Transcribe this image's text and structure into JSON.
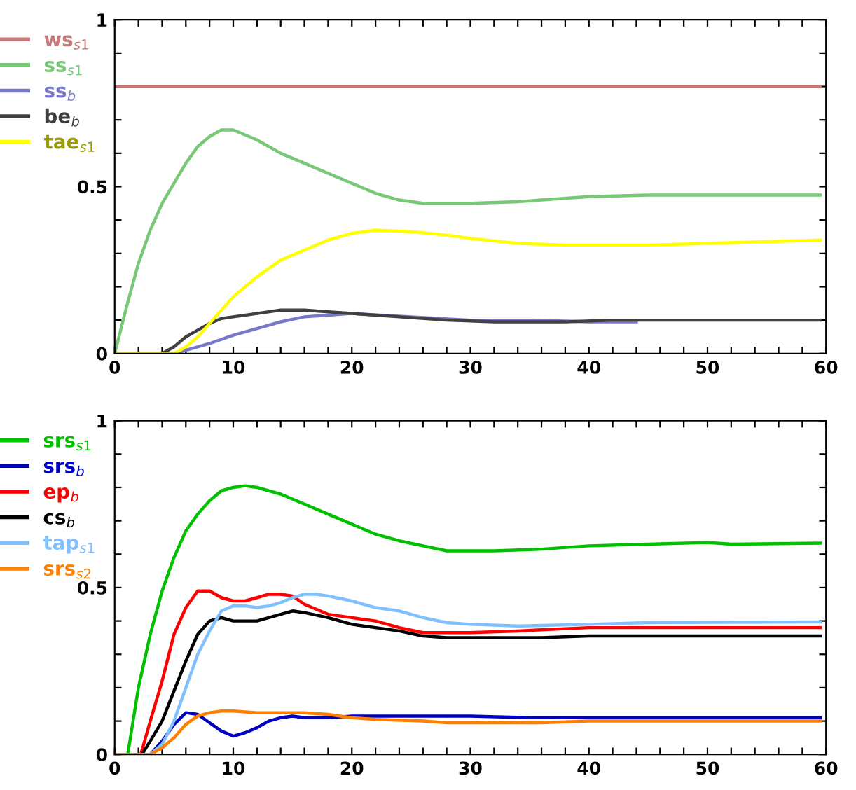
{
  "chart_data": [
    {
      "type": "line",
      "legend": "left",
      "grid": false,
      "xlim": [
        0,
        60
      ],
      "ylim": [
        0,
        1
      ],
      "xticks": [
        0,
        {
          "value": 2,
          "label": null
        },
        {
          "value": 4,
          "label": null
        },
        {
          "value": 6,
          "label": null
        },
        {
          "value": 8,
          "label": null
        },
        10,
        {
          "value": 12,
          "label": null
        },
        {
          "value": 14,
          "label": null
        },
        {
          "value": 16,
          "label": null
        },
        {
          "value": 18,
          "label": null
        },
        20,
        {
          "value": 22,
          "label": null
        },
        {
          "value": 24,
          "label": null
        },
        {
          "value": 26,
          "label": null
        },
        {
          "value": 28,
          "label": null
        },
        30,
        {
          "value": 32,
          "label": null
        },
        {
          "value": 34,
          "label": null
        },
        {
          "value": 36,
          "label": null
        },
        {
          "value": 38,
          "label": null
        },
        40,
        {
          "value": 42,
          "label": null
        },
        {
          "value": 44,
          "label": null
        },
        {
          "value": 46,
          "label": null
        },
        {
          "value": 48,
          "label": null
        },
        50,
        {
          "value": 52,
          "label": null
        },
        {
          "value": 54,
          "label": null
        },
        {
          "value": 56,
          "label": null
        },
        {
          "value": 58,
          "label": null
        },
        60
      ],
      "yticks": [
        0,
        {
          "value": 0.1,
          "label": null
        },
        {
          "value": 0.2,
          "label": null
        },
        {
          "value": 0.3,
          "label": null
        },
        {
          "value": 0.4,
          "label": null
        },
        0.5,
        {
          "value": 0.6,
          "label": null
        },
        {
          "value": 0.7,
          "label": null
        },
        {
          "value": 0.8,
          "label": null
        },
        {
          "value": 0.9,
          "label": null
        },
        1
      ],
      "series": [
        {
          "name": "ws$_{s1}$",
          "color": "#c87878",
          "x": [
            0,
            59.5
          ],
          "values": [
            0.8,
            0.8
          ]
        },
        {
          "name": "ss$_{s1}$",
          "color": "#78c878",
          "x": [
            0,
            1,
            2,
            3,
            4,
            5,
            6,
            7,
            8,
            9,
            10,
            12,
            14,
            16,
            18,
            20,
            22,
            24,
            26,
            30,
            34,
            40,
            45,
            59.5
          ],
          "values": [
            0,
            0.14,
            0.27,
            0.37,
            0.45,
            0.51,
            0.57,
            0.62,
            0.65,
            0.67,
            0.67,
            0.64,
            0.6,
            0.57,
            0.54,
            0.51,
            0.48,
            0.46,
            0.45,
            0.45,
            0.455,
            0.47,
            0.475,
            0.475
          ]
        },
        {
          "name": "ss$_{b}$",
          "color": "#7878c8",
          "x": [
            0,
            5,
            6,
            8,
            10,
            12,
            14,
            16,
            18,
            20,
            25,
            30,
            35,
            40,
            44
          ],
          "values": [
            0,
            0,
            0.01,
            0.03,
            0.055,
            0.075,
            0.095,
            0.11,
            0.115,
            0.12,
            0.11,
            0.1,
            0.1,
            0.095,
            0.095
          ]
        },
        {
          "name": "be$_{b}$",
          "color": "#404040",
          "x": [
            0,
            4,
            5,
            6,
            7,
            8,
            9,
            10,
            12,
            14,
            16,
            18,
            20,
            24,
            28,
            32,
            38,
            42,
            59.5
          ],
          "values": [
            0,
            0,
            0.02,
            0.05,
            0.07,
            0.09,
            0.105,
            0.11,
            0.12,
            0.13,
            0.13,
            0.125,
            0.12,
            0.11,
            0.1,
            0.095,
            0.095,
            0.1,
            0.1
          ]
        },
        {
          "name": "tae$_{s1}$",
          "color": "#ffff00",
          "x": [
            0,
            5,
            6,
            7,
            8,
            9,
            10,
            12,
            14,
            16,
            18,
            20,
            22,
            25,
            28,
            30,
            34,
            38,
            45,
            50,
            59.5
          ],
          "values": [
            0,
            0,
            0.02,
            0.05,
            0.09,
            0.13,
            0.17,
            0.23,
            0.28,
            0.31,
            0.34,
            0.36,
            0.37,
            0.365,
            0.355,
            0.345,
            0.33,
            0.325,
            0.325,
            0.33,
            0.34
          ]
        }
      ]
    },
    {
      "type": "line",
      "legend": "left",
      "grid": false,
      "xlim": [
        0,
        60
      ],
      "ylim": [
        0,
        1
      ],
      "xticks": [
        0,
        {
          "value": 2,
          "label": null
        },
        {
          "value": 4,
          "label": null
        },
        {
          "value": 6,
          "label": null
        },
        {
          "value": 8,
          "label": null
        },
        10,
        {
          "value": 12,
          "label": null
        },
        {
          "value": 14,
          "label": null
        },
        {
          "value": 16,
          "label": null
        },
        {
          "value": 18,
          "label": null
        },
        20,
        {
          "value": 22,
          "label": null
        },
        {
          "value": 24,
          "label": null
        },
        {
          "value": 26,
          "label": null
        },
        {
          "value": 28,
          "label": null
        },
        30,
        {
          "value": 32,
          "label": null
        },
        {
          "value": 34,
          "label": null
        },
        {
          "value": 36,
          "label": null
        },
        {
          "value": 38,
          "label": null
        },
        40,
        {
          "value": 42,
          "label": null
        },
        {
          "value": 44,
          "label": null
        },
        {
          "value": 46,
          "label": null
        },
        {
          "value": 48,
          "label": null
        },
        50,
        {
          "value": 52,
          "label": null
        },
        {
          "value": 54,
          "label": null
        },
        {
          "value": 56,
          "label": null
        },
        {
          "value": 58,
          "label": null
        },
        60
      ],
      "yticks": [
        0,
        {
          "value": 0.1,
          "label": null
        },
        {
          "value": 0.2,
          "label": null
        },
        {
          "value": 0.3,
          "label": null
        },
        {
          "value": 0.4,
          "label": null
        },
        0.5,
        {
          "value": 0.6,
          "label": null
        },
        {
          "value": 0.7,
          "label": null
        },
        {
          "value": 0.8,
          "label": null
        },
        {
          "value": 0.9,
          "label": null
        },
        1
      ],
      "series": [
        {
          "name": "srs$_{s1}$",
          "color": "#00c000",
          "x": [
            0,
            1.1,
            2,
            3,
            4,
            5,
            6,
            7,
            8,
            9,
            10,
            11,
            12,
            14,
            16,
            18,
            20,
            22,
            24,
            26,
            28,
            32,
            36,
            40,
            45,
            50,
            52,
            59.5
          ],
          "values": [
            0,
            0,
            0.2,
            0.36,
            0.49,
            0.59,
            0.67,
            0.72,
            0.76,
            0.79,
            0.8,
            0.805,
            0.8,
            0.78,
            0.75,
            0.72,
            0.69,
            0.66,
            0.64,
            0.625,
            0.61,
            0.61,
            0.615,
            0.625,
            0.63,
            0.635,
            0.63,
            0.633
          ]
        },
        {
          "name": "srs$_{b}$",
          "color": "#0000c0",
          "x": [
            0,
            3,
            4,
            5,
            6,
            7,
            8,
            9,
            10,
            11,
            12,
            13,
            14,
            15,
            16,
            18,
            20,
            25,
            30,
            35,
            59.5
          ],
          "values": [
            0,
            0,
            0.04,
            0.09,
            0.125,
            0.12,
            0.095,
            0.07,
            0.055,
            0.065,
            0.08,
            0.1,
            0.11,
            0.115,
            0.11,
            0.11,
            0.115,
            0.115,
            0.115,
            0.11,
            0.11
          ]
        },
        {
          "name": "ep$_{b}$",
          "color": "#ff0000",
          "x": [
            0,
            2.2,
            3,
            4,
            5,
            6,
            7,
            8,
            9,
            10,
            11,
            12,
            13,
            14,
            15,
            16,
            18,
            20,
            22,
            24,
            26,
            30,
            34,
            40,
            59.5
          ],
          "values": [
            0,
            0,
            0.1,
            0.22,
            0.36,
            0.44,
            0.49,
            0.49,
            0.47,
            0.46,
            0.46,
            0.47,
            0.48,
            0.48,
            0.475,
            0.45,
            0.42,
            0.41,
            0.4,
            0.38,
            0.365,
            0.365,
            0.37,
            0.38,
            0.38
          ]
        },
        {
          "name": "cs$_{b}$",
          "color": "#000000",
          "x": [
            0,
            2.3,
            3,
            4,
            5,
            6,
            7,
            8,
            9,
            10,
            11,
            12,
            13,
            14,
            15,
            16,
            18,
            20,
            22,
            24,
            26,
            28,
            30,
            36,
            40,
            59.5
          ],
          "values": [
            0,
            0,
            0.04,
            0.1,
            0.19,
            0.28,
            0.36,
            0.4,
            0.41,
            0.4,
            0.4,
            0.4,
            0.41,
            0.42,
            0.43,
            0.425,
            0.41,
            0.39,
            0.38,
            0.37,
            0.355,
            0.35,
            0.35,
            0.35,
            0.355,
            0.355
          ]
        },
        {
          "name": "tap$_{s1}$",
          "color": "#80c0ff",
          "x": [
            0,
            3,
            4,
            5,
            6,
            7,
            8,
            9,
            10,
            11,
            12,
            13,
            14,
            15,
            16,
            17,
            18,
            20,
            22,
            24,
            26,
            28,
            30,
            34,
            40,
            45,
            59.5
          ],
          "values": [
            0,
            0,
            0.03,
            0.1,
            0.2,
            0.3,
            0.37,
            0.43,
            0.445,
            0.445,
            0.44,
            0.445,
            0.455,
            0.47,
            0.48,
            0.48,
            0.475,
            0.46,
            0.44,
            0.43,
            0.41,
            0.395,
            0.39,
            0.385,
            0.39,
            0.395,
            0.397
          ]
        },
        {
          "name": "srs$_{s2}$",
          "color": "#ff8000",
          "x": [
            0,
            3,
            4,
            5,
            6,
            7,
            8,
            9,
            10,
            12,
            14,
            16,
            18,
            20,
            22,
            26,
            28,
            36,
            40,
            59.5
          ],
          "values": [
            0,
            0,
            0.02,
            0.05,
            0.09,
            0.115,
            0.125,
            0.13,
            0.13,
            0.125,
            0.125,
            0.125,
            0.12,
            0.11,
            0.105,
            0.1,
            0.095,
            0.095,
            0.1,
            0.1
          ]
        }
      ]
    }
  ]
}
